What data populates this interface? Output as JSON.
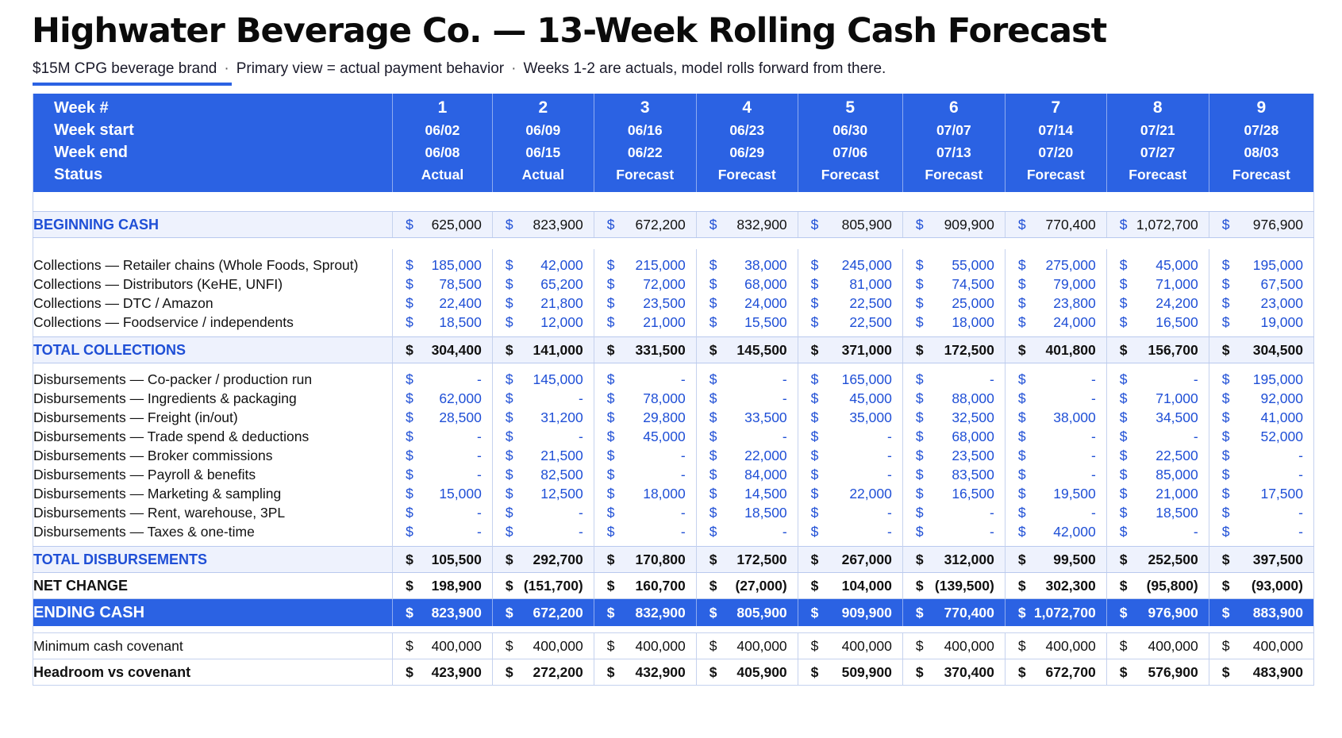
{
  "header": {
    "title": "Highwater Beverage Co. — 13-Week Rolling Cash Forecast",
    "subtitle_parts": [
      "$15M CPG beverage brand",
      "Primary view = actual payment behavior",
      "Weeks 1-2 are actuals, model rolls forward from there."
    ],
    "subtitle_separator": "·",
    "accent_color": "#2b62e3"
  },
  "table": {
    "header_labels": {
      "week_num": "Week #",
      "week_start": "Week start",
      "week_end": "Week end",
      "status": "Status"
    },
    "currency_symbol": "$",
    "weeks": [
      {
        "num": "1",
        "start": "06/02",
        "end": "06/08",
        "status": "Actual"
      },
      {
        "num": "2",
        "start": "06/09",
        "end": "06/15",
        "status": "Actual"
      },
      {
        "num": "3",
        "start": "06/16",
        "end": "06/22",
        "status": "Forecast"
      },
      {
        "num": "4",
        "start": "06/23",
        "end": "06/29",
        "status": "Forecast"
      },
      {
        "num": "5",
        "start": "06/30",
        "end": "07/06",
        "status": "Forecast"
      },
      {
        "num": "6",
        "start": "07/07",
        "end": "07/13",
        "status": "Forecast"
      },
      {
        "num": "7",
        "start": "07/14",
        "end": "07/20",
        "status": "Forecast"
      },
      {
        "num": "8",
        "start": "07/21",
        "end": "07/27",
        "status": "Forecast"
      },
      {
        "num": "9",
        "start": "07/28",
        "end": "08/03",
        "status": "Forecast"
      }
    ],
    "beginning_cash": {
      "label": "BEGINNING CASH",
      "values": [
        "625,000",
        "823,900",
        "672,200",
        "832,900",
        "805,900",
        "909,900",
        "770,400",
        "1,072,700",
        "976,900"
      ]
    },
    "collections": [
      {
        "label": "Collections — Retailer chains (Whole Foods, Sprout)",
        "values": [
          "185,000",
          "42,000",
          "215,000",
          "38,000",
          "245,000",
          "55,000",
          "275,000",
          "45,000",
          "195,000"
        ]
      },
      {
        "label": "Collections — Distributors (KeHE, UNFI)",
        "values": [
          "78,500",
          "65,200",
          "72,000",
          "68,000",
          "81,000",
          "74,500",
          "79,000",
          "71,000",
          "67,500"
        ]
      },
      {
        "label": "Collections — DTC / Amazon",
        "values": [
          "22,400",
          "21,800",
          "23,500",
          "24,000",
          "22,500",
          "25,000",
          "23,800",
          "24,200",
          "23,000"
        ]
      },
      {
        "label": "Collections — Foodservice / independents",
        "values": [
          "18,500",
          "12,000",
          "21,000",
          "15,500",
          "22,500",
          "18,000",
          "24,000",
          "16,500",
          "19,000"
        ]
      }
    ],
    "total_collections": {
      "label": "TOTAL COLLECTIONS",
      "values": [
        "304,400",
        "141,000",
        "331,500",
        "145,500",
        "371,000",
        "172,500",
        "401,800",
        "156,700",
        "304,500"
      ]
    },
    "disbursements": [
      {
        "label": "Disbursements — Co-packer / production run",
        "values": [
          "-",
          "145,000",
          "-",
          "-",
          "165,000",
          "-",
          "-",
          "-",
          "195,000"
        ]
      },
      {
        "label": "Disbursements — Ingredients & packaging",
        "values": [
          "62,000",
          "-",
          "78,000",
          "-",
          "45,000",
          "88,000",
          "-",
          "71,000",
          "92,000"
        ]
      },
      {
        "label": "Disbursements — Freight (in/out)",
        "values": [
          "28,500",
          "31,200",
          "29,800",
          "33,500",
          "35,000",
          "32,500",
          "38,000",
          "34,500",
          "41,000"
        ]
      },
      {
        "label": "Disbursements — Trade spend & deductions",
        "values": [
          "-",
          "-",
          "45,000",
          "-",
          "-",
          "68,000",
          "-",
          "-",
          "52,000"
        ]
      },
      {
        "label": "Disbursements — Broker commissions",
        "values": [
          "-",
          "21,500",
          "-",
          "22,000",
          "-",
          "23,500",
          "-",
          "22,500",
          "-"
        ]
      },
      {
        "label": "Disbursements — Payroll & benefits",
        "values": [
          "-",
          "82,500",
          "-",
          "84,000",
          "-",
          "83,500",
          "-",
          "85,000",
          "-"
        ]
      },
      {
        "label": "Disbursements — Marketing & sampling",
        "values": [
          "15,000",
          "12,500",
          "18,000",
          "14,500",
          "22,000",
          "16,500",
          "19,500",
          "21,000",
          "17,500"
        ]
      },
      {
        "label": "Disbursements — Rent, warehouse, 3PL",
        "values": [
          "-",
          "-",
          "-",
          "18,500",
          "-",
          "-",
          "-",
          "18,500",
          "-"
        ]
      },
      {
        "label": "Disbursements — Taxes & one-time",
        "values": [
          "-",
          "-",
          "-",
          "-",
          "-",
          "-",
          "42,000",
          "-",
          "-"
        ]
      }
    ],
    "total_disbursements": {
      "label": "TOTAL DISBURSEMENTS",
      "values": [
        "105,500",
        "292,700",
        "170,800",
        "172,500",
        "267,000",
        "312,000",
        "99,500",
        "252,500",
        "397,500"
      ]
    },
    "net_change": {
      "label": "NET CHANGE",
      "values": [
        "198,900",
        "(151,700)",
        "160,700",
        "(27,000)",
        "104,000",
        "(139,500)",
        "302,300",
        "(95,800)",
        "(93,000)"
      ]
    },
    "ending_cash": {
      "label": "ENDING CASH",
      "values": [
        "823,900",
        "672,200",
        "832,900",
        "805,900",
        "909,900",
        "770,400",
        "1,072,700",
        "976,900",
        "883,900"
      ]
    },
    "min_covenant": {
      "label": "Minimum cash covenant",
      "values": [
        "400,000",
        "400,000",
        "400,000",
        "400,000",
        "400,000",
        "400,000",
        "400,000",
        "400,000",
        "400,000"
      ]
    },
    "headroom": {
      "label": "Headroom vs covenant",
      "values": [
        "423,900",
        "272,200",
        "432,900",
        "405,900",
        "509,900",
        "370,400",
        "672,700",
        "576,900",
        "483,900"
      ]
    }
  }
}
